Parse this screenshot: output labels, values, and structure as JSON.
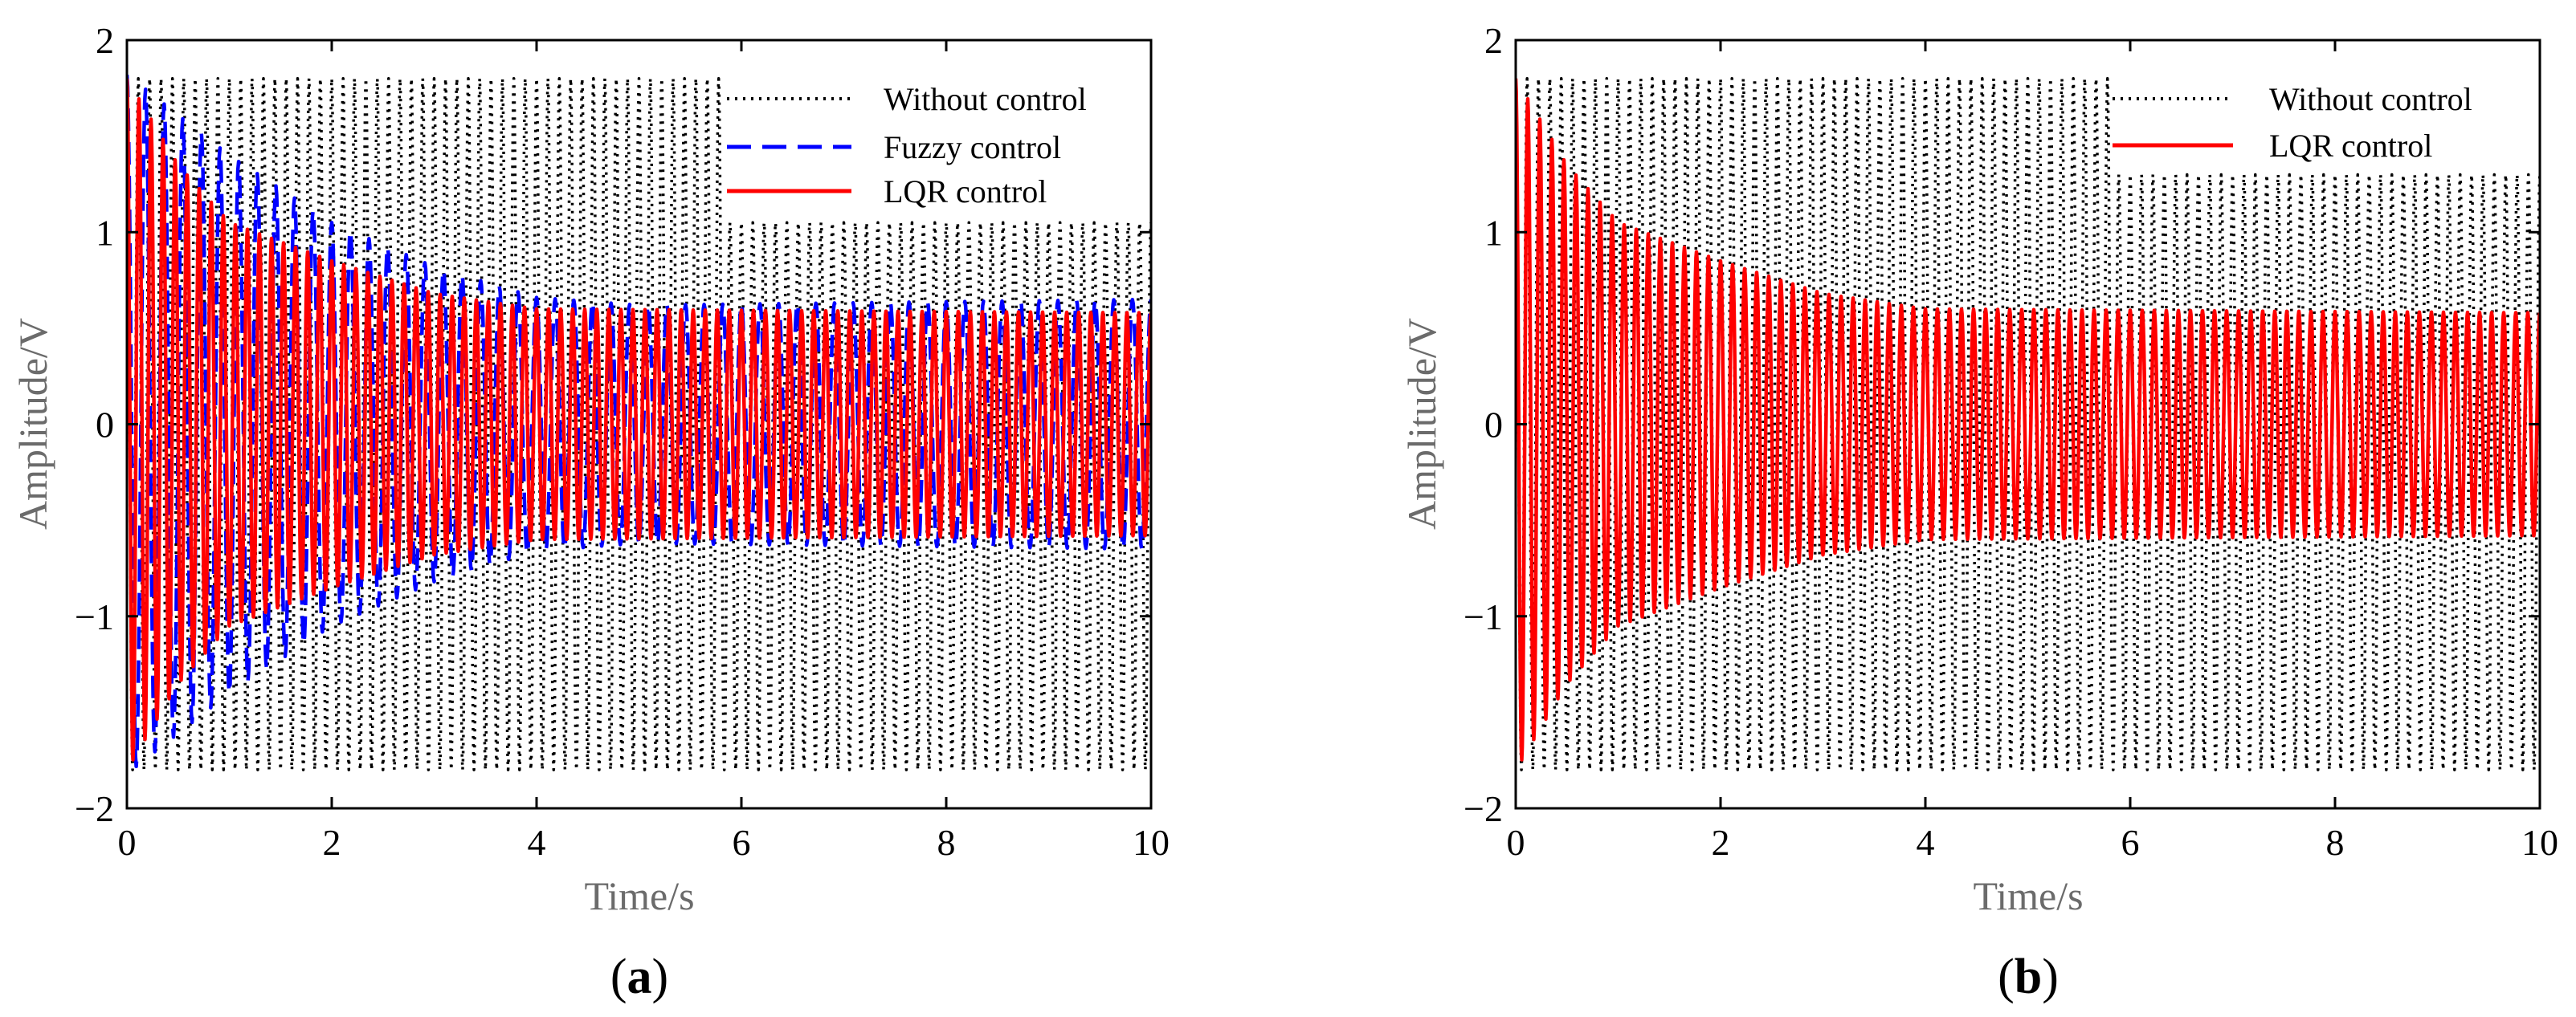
{
  "chart_data": [
    {
      "panel": "a",
      "type": "line",
      "panel_label": "a",
      "xlabel": "Time/s",
      "ylabel": "Amplitude/V",
      "xlim": [
        0,
        10
      ],
      "ylim": [
        -2,
        2
      ],
      "xticks": [
        0,
        2,
        4,
        6,
        8,
        10
      ],
      "yticks": [
        -2,
        -1,
        0,
        1,
        2
      ],
      "ytick_labels": [
        "−2",
        "−1",
        "0",
        "1",
        "2"
      ],
      "legend_position": "top-right",
      "series": [
        {
          "name": "Without control",
          "style": "dotted",
          "color": "#000000",
          "cycles": 90,
          "envelope": [
            [
              0,
              1.8
            ],
            [
              5.8,
              1.8
            ],
            [
              5.8,
              1.05
            ],
            [
              10,
              1.05
            ]
          ],
          "envelope_neg": [
            [
              0,
              1.8
            ],
            [
              10,
              1.8
            ]
          ]
        },
        {
          "name": "Fuzzy control",
          "style": "dashed",
          "color": "#0000ff",
          "cycles": 55,
          "envelope": [
            [
              0,
              1.82
            ],
            [
              1,
              1.4
            ],
            [
              2,
              1.05
            ],
            [
              3,
              0.82
            ],
            [
              4,
              0.66
            ],
            [
              5,
              0.62
            ],
            [
              10,
              0.65
            ]
          ]
        },
        {
          "name": "LQR control",
          "style": "solid",
          "color": "#ff0000",
          "cycles": 85,
          "envelope": [
            [
              0,
              1.8
            ],
            [
              0.5,
              1.35
            ],
            [
              1,
              1.05
            ],
            [
              2,
              0.85
            ],
            [
              3,
              0.68
            ],
            [
              4,
              0.6
            ],
            [
              10,
              0.58
            ]
          ]
        }
      ]
    },
    {
      "panel": "b",
      "type": "line",
      "panel_label": "b",
      "xlabel": "Time/s",
      "ylabel": "Amplitude/V",
      "xlim": [
        0,
        10
      ],
      "ylim": [
        -2,
        2
      ],
      "xticks": [
        0,
        2,
        4,
        6,
        8,
        10
      ],
      "yticks": [
        -2,
        -1,
        0,
        1,
        2
      ],
      "ytick_labels": [
        "−2",
        "−1",
        "0",
        "1",
        "2"
      ],
      "legend_position": "top-right",
      "series": [
        {
          "name": "Without control",
          "style": "dotted",
          "color": "#000000",
          "cycles": 90,
          "envelope": [
            [
              0,
              1.8
            ],
            [
              5.8,
              1.8
            ],
            [
              5.8,
              1.3
            ],
            [
              10,
              1.3
            ]
          ],
          "envelope_neg": [
            [
              0,
              1.8
            ],
            [
              10,
              1.8
            ]
          ]
        },
        {
          "name": "LQR control",
          "style": "solid",
          "color": "#ff0000",
          "cycles": 85,
          "envelope": [
            [
              0,
              1.8
            ],
            [
              0.5,
              1.35
            ],
            [
              1,
              1.05
            ],
            [
              2,
              0.85
            ],
            [
              3,
              0.68
            ],
            [
              4,
              0.6
            ],
            [
              10,
              0.58
            ]
          ]
        }
      ]
    }
  ]
}
